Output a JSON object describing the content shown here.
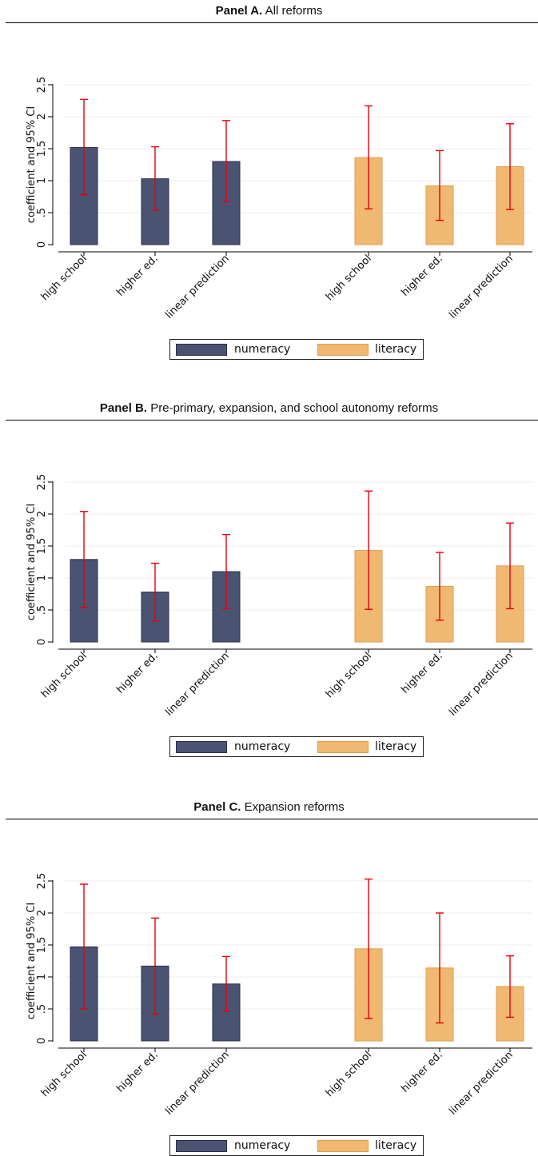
{
  "y_axis_label": "coefficient and 95% CI",
  "legend": {
    "numeracy": "numeracy",
    "literacy": "literacy"
  },
  "colors": {
    "numeracy": "#4a5472",
    "literacy": "#f0b871",
    "ci": "#e8000b",
    "grid": "#ececec"
  },
  "chart_data": [
    {
      "type": "bar",
      "title_bold": "Panel A.",
      "title_rest": " All reforms",
      "ylabel": "coefficient and 95% CI",
      "ylim": [
        0,
        2.5
      ],
      "yticks": [
        0,
        0.5,
        1,
        1.5,
        2,
        2.5
      ],
      "ytick_labels": [
        "0",
        ".5",
        "1",
        "1.5",
        "2",
        "2.5"
      ],
      "categories": [
        "high school",
        "higher ed.",
        "linear prediction"
      ],
      "series": [
        {
          "name": "numeracy",
          "values": [
            1.52,
            1.03,
            1.3
          ],
          "ci_low": [
            0.78,
            0.54,
            0.67
          ],
          "ci_high": [
            2.27,
            1.53,
            1.94
          ]
        },
        {
          "name": "literacy",
          "values": [
            1.36,
            0.92,
            1.22
          ],
          "ci_low": [
            0.56,
            0.38,
            0.55
          ],
          "ci_high": [
            2.17,
            1.47,
            1.89
          ]
        }
      ],
      "grid": true,
      "legend_position": "bottom"
    },
    {
      "type": "bar",
      "title_bold": "Panel B.",
      "title_rest": " Pre-primary, expansion, and school autonomy reforms",
      "ylabel": "coefficient and 95% CI",
      "ylim": [
        0,
        2.5
      ],
      "yticks": [
        0,
        0.5,
        1,
        1.5,
        2,
        2.5
      ],
      "ytick_labels": [
        "0",
        ".5",
        "1",
        "1.5",
        "2",
        "2.5"
      ],
      "categories": [
        "high school",
        "higher ed.",
        "linear prediction"
      ],
      "series": [
        {
          "name": "numeracy",
          "values": [
            1.29,
            0.78,
            1.1
          ],
          "ci_low": [
            0.54,
            0.33,
            0.52
          ],
          "ci_high": [
            2.04,
            1.23,
            1.68
          ]
        },
        {
          "name": "literacy",
          "values": [
            1.43,
            0.87,
            1.19
          ],
          "ci_low": [
            0.51,
            0.34,
            0.52
          ],
          "ci_high": [
            2.36,
            1.4,
            1.86
          ]
        }
      ],
      "grid": true,
      "legend_position": "bottom"
    },
    {
      "type": "bar",
      "title_bold": "Panel C.",
      "title_rest": " Expansion reforms",
      "ylabel": "coefficient and 95% CI",
      "ylim": [
        0,
        2.5
      ],
      "yticks": [
        0,
        0.5,
        1,
        1.5,
        2,
        2.5
      ],
      "ytick_labels": [
        "0",
        ".5",
        "1",
        "1.5",
        "2",
        "2.5"
      ],
      "categories": [
        "high school",
        "higher ed.",
        "linear prediction"
      ],
      "series": [
        {
          "name": "numeracy",
          "values": [
            1.47,
            1.17,
            0.89
          ],
          "ci_low": [
            0.5,
            0.42,
            0.46
          ],
          "ci_high": [
            2.45,
            1.92,
            1.32
          ]
        },
        {
          "name": "literacy",
          "values": [
            1.44,
            1.14,
            0.85
          ],
          "ci_low": [
            0.35,
            0.28,
            0.37
          ],
          "ci_high": [
            2.53,
            2.0,
            1.33
          ]
        }
      ],
      "grid": true,
      "legend_position": "bottom"
    }
  ]
}
